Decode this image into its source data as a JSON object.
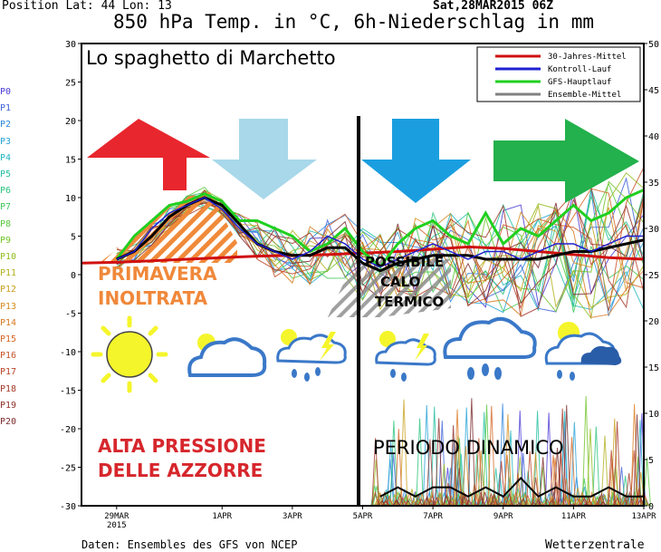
{
  "header": {
    "position": "Position  Lat: 44 Lon: 13",
    "date": "Sat,28MAR2015 06Z",
    "title": "850 hPa Temp. in °C, 6h-Niederschlag in mm"
  },
  "footer": {
    "source": "Daten: Ensembles des GFS von NCEP",
    "brand": "Wetterzentrale"
  },
  "overlay": {
    "title": "Lo spaghetto di Marchetto",
    "primavera_1": "PRIMAVERA",
    "primavera_2": "INOLTRATA",
    "calo_1": "POSSIBILE",
    "calo_2": "CALO",
    "calo_3": "TERMICO",
    "alta_1": "ALTA PRESSIONE",
    "alta_2": "DELLE AZZORRE",
    "periodo": "PERIODO DINAMICO"
  },
  "colors": {
    "clim": "#d01010",
    "control": "#2020d0",
    "gfs": "#20d020",
    "mean": "#808080",
    "arrow_red": "#e8262d",
    "arrow_lightblue": "#a8d8ea",
    "arrow_blue": "#1a9ee0",
    "arrow_green": "#22b14c",
    "hatch_orange": "#f08a3a"
  },
  "icons": [
    "sun-icon",
    "cloud-icon",
    "storm-cloud-icon",
    "storm-cloud-icon",
    "rain-cloud-icon",
    "sun-rain-cloud-icon"
  ],
  "chart_data": {
    "type": "line",
    "x_ticks": [
      "29MAR\n2015",
      "1APR",
      "3APR",
      "5APR",
      "7APR",
      "9APR",
      "11APR",
      "13APR"
    ],
    "x_days": [
      1,
      4,
      6,
      8,
      10,
      12,
      14,
      16
    ],
    "xlim": [
      0,
      16
    ],
    "ylim_left": [
      -30,
      30
    ],
    "ylim_right": [
      0,
      50
    ],
    "y_ticks_left": [
      30,
      25,
      20,
      15,
      10,
      5,
      0,
      -5,
      -10,
      -15,
      -20,
      -25,
      -30
    ],
    "y_ticks_right": [
      50,
      45,
      40,
      35,
      30,
      25,
      20,
      15,
      10,
      5,
      0
    ],
    "legend": [
      {
        "name": "30-Jahres-Mittel",
        "color": "#d01010"
      },
      {
        "name": "Kontroll-Lauf",
        "color": "#2020d0"
      },
      {
        "name": "GFS-Hauptlauf",
        "color": "#20d020"
      },
      {
        "name": "Ensemble-Mittel",
        "color": "#808080"
      }
    ],
    "members": [
      "P0",
      "P1",
      "P2",
      "P3",
      "P4",
      "P5",
      "P6",
      "P7",
      "P8",
      "P9",
      "P10",
      "P11",
      "P12",
      "P13",
      "P14",
      "P15",
      "P16",
      "P17",
      "P18",
      "P19",
      "P20"
    ],
    "member_colors": [
      "#4b3bd6",
      "#3e63d9",
      "#2f86dd",
      "#27a3d8",
      "#22b6c0",
      "#23bfa0",
      "#2cc47e",
      "#3ec85a",
      "#55c83c",
      "#73c42a",
      "#93bd22",
      "#b1b11f",
      "#c8a11f",
      "#d58d20",
      "#d97a22",
      "#d46624",
      "#c85426",
      "#b84428",
      "#a53a2a",
      "#90322c",
      "#7c2c2e"
    ],
    "series": [
      {
        "name": "30-Jahres-Mittel",
        "x": [
          0,
          1,
          2,
          3,
          4,
          5,
          6,
          7,
          8,
          9,
          10,
          11,
          12,
          13,
          14,
          15,
          16
        ],
        "y": [
          1.5,
          1.6,
          1.8,
          2.0,
          2.2,
          2.4,
          2.5,
          2.6,
          2.8,
          3.0,
          3.3,
          3.6,
          3.4,
          3.0,
          2.6,
          2.2,
          2.0
        ]
      },
      {
        "name": "GFS-Hauptlauf",
        "x": [
          1,
          1.5,
          2,
          2.5,
          3,
          3.5,
          4,
          4.5,
          5,
          5.5,
          6,
          6.5,
          7,
          7.5,
          8,
          8.5,
          9,
          9.5,
          10,
          10.5,
          11,
          11.5,
          12,
          12.5,
          13,
          13.5,
          14,
          14.5,
          15,
          15.5,
          16
        ],
        "y": [
          2,
          5,
          7,
          9,
          9.5,
          10.5,
          9.5,
          7,
          7,
          6,
          5,
          3,
          4,
          6,
          3,
          1,
          4,
          6,
          7,
          5,
          4,
          8,
          4,
          6,
          5,
          7,
          9,
          7,
          8,
          10,
          11
        ]
      },
      {
        "name": "Ensemble-Mittel",
        "x": [
          1,
          1.5,
          2,
          2.5,
          3,
          3.5,
          4,
          4.5,
          5,
          5.5,
          6,
          6.5,
          7,
          7.5,
          8,
          8.5,
          9,
          9.5,
          10,
          10.5,
          11,
          11.5,
          12,
          12.5,
          13,
          13.5,
          14,
          14.5,
          15,
          15.5,
          16
        ],
        "y": [
          2,
          3,
          5,
          7.5,
          9,
          10,
          9,
          6.5,
          4,
          3,
          2.5,
          2.5,
          3.5,
          3.5,
          1.5,
          0.5,
          1.5,
          2,
          2.5,
          2.5,
          2.5,
          2,
          2,
          2,
          2,
          2.5,
          3,
          3,
          3.5,
          4,
          4.5
        ]
      },
      {
        "name": "Kontroll-Lauf",
        "x": [
          1,
          1.5,
          2,
          2.5,
          3,
          3.5,
          4,
          4.5,
          5,
          5.5,
          6,
          6.5,
          7,
          7.5,
          8,
          8.5,
          9,
          9.5,
          10,
          10.5,
          11,
          11.5,
          12,
          12.5,
          13,
          13.5,
          14,
          14.5,
          15,
          15.5,
          16
        ],
        "y": [
          2,
          3,
          6,
          8,
          9,
          10,
          8.5,
          6,
          4,
          3,
          2,
          3,
          5,
          4,
          2,
          1,
          2,
          3,
          4,
          3,
          2,
          3,
          3,
          2,
          3,
          4,
          4,
          3,
          4,
          5,
          5
        ]
      }
    ],
    "precip_mean": {
      "x": [
        8.5,
        9,
        9.5,
        10,
        10.5,
        11,
        11.5,
        12,
        12.5,
        13,
        13.5,
        14,
        14.5,
        15,
        15.5,
        16
      ],
      "y": [
        1,
        2,
        1,
        2,
        2,
        1,
        2,
        1,
        3,
        1,
        2,
        1,
        1,
        2,
        1,
        1
      ]
    }
  }
}
